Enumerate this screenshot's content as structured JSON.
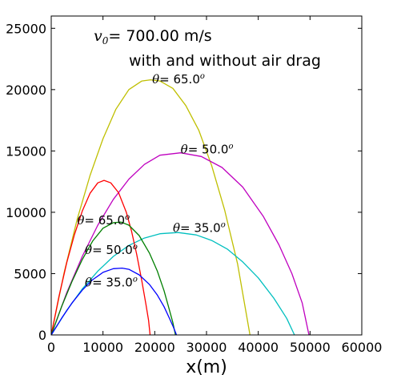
{
  "chart_data": {
    "type": "line",
    "xlabel": "x(m)",
    "ylabel": "",
    "xlim": [
      0,
      60000
    ],
    "ylim": [
      0,
      26000
    ],
    "x_ticks": [
      0,
      10000,
      20000,
      30000,
      40000,
      50000,
      60000
    ],
    "y_ticks": [
      0,
      5000,
      10000,
      15000,
      20000,
      25000
    ],
    "grid": false,
    "annotations": {
      "velocity_symbol": "v",
      "velocity_subscript": "0",
      "velocity_text": "= 700.00 m/s",
      "drag_text": "with and without air drag"
    },
    "curve_label_symbol": "θ",
    "series": [
      {
        "name": "θ= 65.0",
        "label_suffix": "o",
        "drag": false,
        "color": "#bfbf00",
        "x": [
          0,
          2500,
          5000,
          7500,
          10000,
          12500,
          15000,
          17500,
          19200,
          21000,
          23500,
          26000,
          28500,
          31000,
          33500,
          36000,
          38400
        ],
        "y": [
          0,
          5100,
          9400,
          13000,
          16000,
          18400,
          20000,
          20700,
          20800,
          20700,
          20100,
          18700,
          16700,
          13800,
          10200,
          5800,
          0
        ]
      },
      {
        "name": "θ= 50.0",
        "label_suffix": "o",
        "drag": false,
        "color": "#bf00bf",
        "x": [
          0,
          3000,
          6000,
          9000,
          12000,
          15000,
          18000,
          21000,
          25000,
          29000,
          33000,
          37000,
          41000,
          44000,
          46500,
          48500,
          49800
        ],
        "y": [
          0,
          3450,
          6400,
          8950,
          11050,
          12700,
          13900,
          14650,
          14850,
          14550,
          13650,
          12050,
          9650,
          7350,
          5000,
          2600,
          0
        ]
      },
      {
        "name": "θ= 35.0",
        "label_suffix": "o",
        "drag": false,
        "color": "#00bfbf",
        "x": [
          0,
          3000,
          6000,
          9000,
          12000,
          15000,
          18000,
          21000,
          24500,
          28000,
          31000,
          34000,
          37000,
          40000,
          43000,
          45500,
          47000
        ],
        "y": [
          0,
          2000,
          3750,
          5200,
          6400,
          7300,
          7900,
          8250,
          8350,
          8150,
          7700,
          7000,
          5950,
          4650,
          3000,
          1350,
          0
        ]
      },
      {
        "name": "θ= 65.0",
        "label_suffix": "o",
        "drag": true,
        "color": "#ff0000",
        "x": [
          0,
          1500,
          3000,
          4500,
          6000,
          7500,
          9000,
          10200,
          11500,
          13000,
          14500,
          15500,
          16500,
          17500,
          18300,
          18800,
          19100
        ],
        "y": [
          0,
          3150,
          5900,
          8200,
          10100,
          11550,
          12400,
          12600,
          12400,
          11600,
          10000,
          8500,
          6600,
          4400,
          2500,
          1200,
          0
        ]
      },
      {
        "name": "θ= 50.0",
        "label_suffix": "o",
        "drag": true,
        "color": "#007f00",
        "x": [
          0,
          2000,
          4000,
          6000,
          8000,
          10000,
          12000,
          13500,
          15000,
          17000,
          19000,
          20500,
          21800,
          22800,
          23500,
          24000
        ],
        "y": [
          0,
          2300,
          4350,
          6150,
          7650,
          8700,
          9150,
          9200,
          8950,
          8100,
          6650,
          5200,
          3600,
          2100,
          1000,
          0
        ]
      },
      {
        "name": "θ= 35.0",
        "label_suffix": "o",
        "drag": true,
        "color": "#0000ff",
        "x": [
          0,
          2000,
          4000,
          6000,
          8000,
          10000,
          12000,
          13700,
          15000,
          17000,
          19000,
          20500,
          21800,
          22800,
          23600,
          24200
        ],
        "y": [
          0,
          1350,
          2600,
          3650,
          4500,
          5100,
          5400,
          5450,
          5350,
          4900,
          4100,
          3250,
          2300,
          1400,
          650,
          0
        ]
      }
    ],
    "curve_labels": [
      {
        "series": 0,
        "x": 19500,
        "y": 20500
      },
      {
        "series": 1,
        "x": 25000,
        "y": 14800
      },
      {
        "series": 2,
        "x": 23500,
        "y": 8400
      },
      {
        "series": 3,
        "x": 5000,
        "y": 9000
      },
      {
        "series": 4,
        "x": 6500,
        "y": 6600
      },
      {
        "series": 5,
        "x": 6500,
        "y": 3950
      }
    ]
  }
}
